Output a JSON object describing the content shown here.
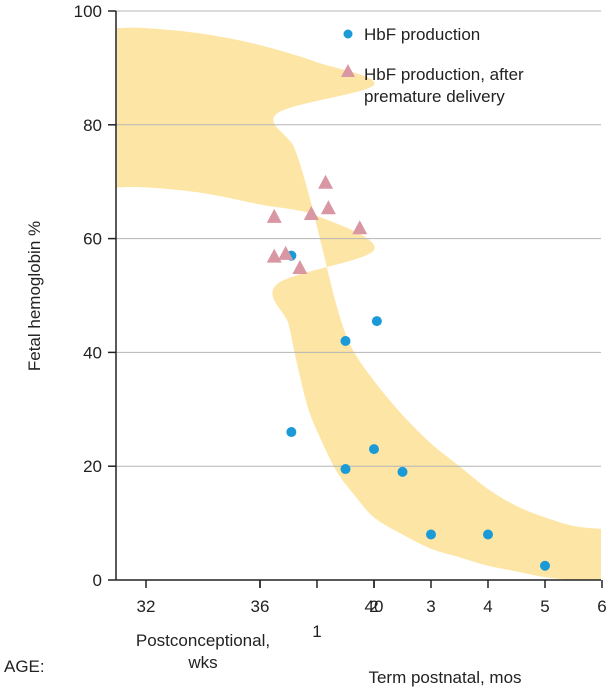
{
  "chart_data": {
    "type": "scatter",
    "ylabel": "Fetal hemoglobin %",
    "ylim": [
      0,
      100
    ],
    "yticks": [
      0,
      20,
      40,
      60,
      80,
      100
    ],
    "age_label": "AGE:",
    "x_axes": {
      "postconceptional": {
        "title_line1": "Postconceptional,",
        "title_line2": "wks",
        "ticks": [
          "32",
          "36",
          "40"
        ]
      },
      "postnatal": {
        "title": "Term postnatal, mos",
        "ticks": [
          "1",
          "2",
          "3",
          "4",
          "5",
          "6"
        ]
      }
    },
    "legend": {
      "position": "top-right",
      "entries": [
        {
          "label": "HbF production",
          "marker": "circle",
          "color": "#1a9ad6"
        },
        {
          "label_line1": "HbF production, after",
          "label_line2": "premature delivery",
          "marker": "triangle",
          "color": "#d996a3"
        }
      ]
    },
    "band": {
      "color": "#fde5a5",
      "upper": [
        [
          30,
          97
        ],
        [
          32,
          97
        ],
        [
          34,
          96
        ],
        [
          36,
          94
        ],
        [
          38,
          91
        ],
        [
          40,
          87
        ],
        [
          0.3,
          82
        ],
        [
          0.6,
          76
        ],
        [
          0.85,
          68
        ],
        [
          1.1,
          58
        ],
        [
          1.35,
          48
        ],
        [
          1.6,
          41
        ],
        [
          2.0,
          35
        ],
        [
          2.5,
          29
        ],
        [
          3.0,
          24
        ],
        [
          3.5,
          20
        ],
        [
          4.0,
          16
        ],
        [
          4.5,
          13
        ],
        [
          5.0,
          11
        ],
        [
          5.5,
          9.5
        ],
        [
          6.0,
          9
        ]
      ],
      "lower": [
        [
          30,
          69
        ],
        [
          32,
          69
        ],
        [
          34,
          68
        ],
        [
          36,
          66
        ],
        [
          38,
          64
        ],
        [
          40,
          58
        ],
        [
          0.3,
          52
        ],
        [
          0.5,
          45
        ],
        [
          0.65,
          38
        ],
        [
          0.85,
          30
        ],
        [
          1.1,
          24
        ],
        [
          1.35,
          19
        ],
        [
          1.65,
          15
        ],
        [
          2.0,
          11
        ],
        [
          2.5,
          8
        ],
        [
          3.0,
          5.5
        ],
        [
          3.5,
          4
        ],
        [
          4.0,
          2.5
        ],
        [
          4.5,
          1.5
        ],
        [
          5.0,
          0.5
        ],
        [
          5.5,
          0
        ],
        [
          6.0,
          0
        ]
      ]
    },
    "series": [
      {
        "name": "HbF production",
        "marker": "circle",
        "color": "#1a9ad6",
        "points": [
          [
            40.1,
            45.5
          ],
          [
            0.55,
            57
          ],
          [
            0.55,
            26
          ],
          [
            1.5,
            42
          ],
          [
            1.5,
            19.5
          ],
          [
            2.0,
            23
          ],
          [
            2.5,
            19
          ],
          [
            3.0,
            8
          ],
          [
            4.0,
            8
          ],
          [
            5.0,
            2.5
          ]
        ]
      },
      {
        "name": "HbF production, after premature delivery",
        "marker": "triangle",
        "color": "#d996a3",
        "points": [
          [
            36.5,
            64
          ],
          [
            37.8,
            64.5
          ],
          [
            38.3,
            70
          ],
          [
            38.4,
            65.5
          ],
          [
            39.5,
            62
          ],
          [
            0.25,
            57
          ],
          [
            0.45,
            57.5
          ],
          [
            0.7,
            55
          ]
        ]
      }
    ]
  }
}
